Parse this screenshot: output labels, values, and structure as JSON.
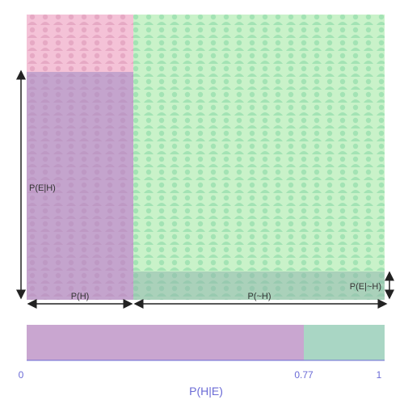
{
  "diagram": {
    "prior_h": 0.3,
    "likelihood_e_given_h": 0.8,
    "likelihood_e_given_not_h": 0.1,
    "posterior": 0.77,
    "colors": {
      "h_region": "#f4c2d7",
      "not_h_region": "#c9f2c9",
      "evidence_overlay": "#9c8cc4",
      "posterior_h": "#c9a6d0",
      "posterior_not_h": "#a9d6c4",
      "person_icon_h": "#e6a9c4",
      "person_icon_not_h": "#a3e3b4",
      "axis_line": "#6b6bd6",
      "arrow": "#222222"
    },
    "icon": "person-icon"
  },
  "labels": {
    "p_h": "P(H)",
    "p_not_h": "P(~H)",
    "p_e_given_h": "P(E|H)",
    "p_e_given_not_h": "P(E|~H)",
    "axis_min": "0",
    "axis_mid": "0.77",
    "axis_max": "1",
    "axis_title": "P(H|E)"
  }
}
